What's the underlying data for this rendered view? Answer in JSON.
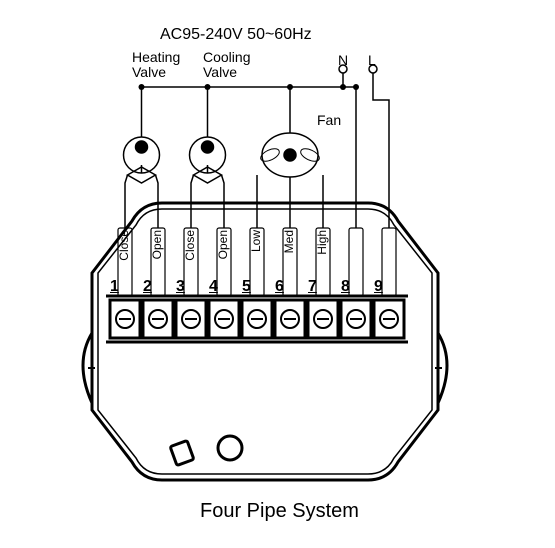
{
  "title": "Four Pipe  System",
  "powerSpec": "AC95-240V  50~60Hz",
  "labels": {
    "heatingValve": "Heating\nValve",
    "coolingValve": "Cooling\nValve",
    "fan": "Fan",
    "neutral": "N",
    "line": "L"
  },
  "terminals": [
    {
      "num": "1",
      "label": "Close"
    },
    {
      "num": "2",
      "label": "Open"
    },
    {
      "num": "3",
      "label": "Close"
    },
    {
      "num": "4",
      "label": "Open"
    },
    {
      "num": "5",
      "label": "Low"
    },
    {
      "num": "6",
      "label": "Med"
    },
    {
      "num": "7",
      "label": "High"
    },
    {
      "num": "8",
      "label": ""
    },
    {
      "num": "9",
      "label": ""
    }
  ],
  "style": {
    "stroke": "#000000",
    "bg": "#ffffff",
    "thin": 1.5,
    "thick": 3,
    "labelFont": 14,
    "termFont": 16,
    "vLabelFont": 12,
    "titleFont": 20,
    "specFont": 16
  },
  "geom": {
    "terminalY": 300,
    "terminalH": 38,
    "terminalW": 30,
    "firstX": 125,
    "gap": 33,
    "topBusY": 75,
    "valveY": 155,
    "fanY": 155,
    "deviceTop": 203,
    "deviceBottom": 480,
    "deviceLeft": 92,
    "deviceRight": 438
  }
}
